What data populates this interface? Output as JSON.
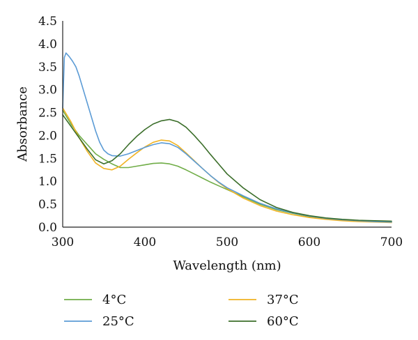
{
  "chart_data": {
    "type": "line",
    "title": "",
    "xlabel": "Wavelength (nm)",
    "ylabel": "Absorbance",
    "xlim": [
      300,
      700
    ],
    "ylim": [
      0,
      4.5
    ],
    "x_ticks": [
      "300",
      "400",
      "500",
      "600",
      "700"
    ],
    "y_ticks": [
      "0.0",
      "0.5",
      "1.0",
      "1.5",
      "2.0",
      "2.5",
      "3.0",
      "3.5",
      "4.0",
      "4.5"
    ],
    "grid": false,
    "legend_position": "bottom",
    "series": [
      {
        "name": "4°C",
        "color": "#70ad47",
        "points": [
          [
            300,
            2.55
          ],
          [
            310,
            2.25
          ],
          [
            320,
            2.0
          ],
          [
            330,
            1.8
          ],
          [
            340,
            1.6
          ],
          [
            350,
            1.48
          ],
          [
            360,
            1.38
          ],
          [
            370,
            1.3
          ],
          [
            380,
            1.3
          ],
          [
            390,
            1.33
          ],
          [
            400,
            1.36
          ],
          [
            410,
            1.39
          ],
          [
            420,
            1.4
          ],
          [
            430,
            1.38
          ],
          [
            440,
            1.33
          ],
          [
            450,
            1.25
          ],
          [
            460,
            1.16
          ],
          [
            470,
            1.07
          ],
          [
            480,
            0.98
          ],
          [
            490,
            0.9
          ],
          [
            500,
            0.82
          ],
          [
            520,
            0.66
          ],
          [
            540,
            0.5
          ],
          [
            560,
            0.38
          ],
          [
            580,
            0.3
          ],
          [
            600,
            0.23
          ],
          [
            620,
            0.19
          ],
          [
            640,
            0.16
          ],
          [
            660,
            0.14
          ],
          [
            680,
            0.12
          ],
          [
            700,
            0.11
          ]
        ]
      },
      {
        "name": "25°C",
        "color": "#5b9bd5",
        "points": [
          [
            300,
            2.6
          ],
          [
            302,
            3.7
          ],
          [
            304,
            3.8
          ],
          [
            308,
            3.72
          ],
          [
            312,
            3.62
          ],
          [
            316,
            3.5
          ],
          [
            320,
            3.3
          ],
          [
            325,
            3.0
          ],
          [
            330,
            2.7
          ],
          [
            335,
            2.4
          ],
          [
            340,
            2.1
          ],
          [
            345,
            1.85
          ],
          [
            350,
            1.68
          ],
          [
            355,
            1.6
          ],
          [
            360,
            1.56
          ],
          [
            370,
            1.55
          ],
          [
            380,
            1.6
          ],
          [
            390,
            1.67
          ],
          [
            400,
            1.74
          ],
          [
            410,
            1.8
          ],
          [
            420,
            1.84
          ],
          [
            430,
            1.82
          ],
          [
            440,
            1.74
          ],
          [
            450,
            1.6
          ],
          [
            460,
            1.44
          ],
          [
            470,
            1.28
          ],
          [
            480,
            1.12
          ],
          [
            490,
            0.98
          ],
          [
            500,
            0.86
          ],
          [
            520,
            0.68
          ],
          [
            540,
            0.52
          ],
          [
            560,
            0.4
          ],
          [
            580,
            0.31
          ],
          [
            600,
            0.24
          ],
          [
            620,
            0.19
          ],
          [
            640,
            0.16
          ],
          [
            660,
            0.14
          ],
          [
            680,
            0.12
          ],
          [
            700,
            0.11
          ]
        ]
      },
      {
        "name": "37°C",
        "color": "#f0b323",
        "points": [
          [
            300,
            2.6
          ],
          [
            310,
            2.3
          ],
          [
            320,
            1.95
          ],
          [
            330,
            1.65
          ],
          [
            340,
            1.4
          ],
          [
            350,
            1.28
          ],
          [
            360,
            1.25
          ],
          [
            370,
            1.33
          ],
          [
            380,
            1.48
          ],
          [
            390,
            1.62
          ],
          [
            400,
            1.75
          ],
          [
            410,
            1.85
          ],
          [
            420,
            1.9
          ],
          [
            430,
            1.88
          ],
          [
            440,
            1.78
          ],
          [
            450,
            1.62
          ],
          [
            460,
            1.45
          ],
          [
            470,
            1.28
          ],
          [
            480,
            1.12
          ],
          [
            490,
            0.97
          ],
          [
            500,
            0.84
          ],
          [
            520,
            0.63
          ],
          [
            540,
            0.47
          ],
          [
            560,
            0.35
          ],
          [
            580,
            0.27
          ],
          [
            600,
            0.21
          ],
          [
            620,
            0.17
          ],
          [
            640,
            0.14
          ],
          [
            660,
            0.12
          ],
          [
            680,
            0.11
          ],
          [
            700,
            0.1
          ]
        ]
      },
      {
        "name": "60°C",
        "color": "#3b6e2a",
        "points": [
          [
            300,
            2.45
          ],
          [
            310,
            2.2
          ],
          [
            320,
            1.95
          ],
          [
            330,
            1.7
          ],
          [
            340,
            1.47
          ],
          [
            350,
            1.38
          ],
          [
            360,
            1.45
          ],
          [
            370,
            1.6
          ],
          [
            380,
            1.8
          ],
          [
            390,
            1.98
          ],
          [
            400,
            2.13
          ],
          [
            410,
            2.25
          ],
          [
            420,
            2.32
          ],
          [
            430,
            2.35
          ],
          [
            440,
            2.3
          ],
          [
            450,
            2.18
          ],
          [
            460,
            2.0
          ],
          [
            470,
            1.8
          ],
          [
            480,
            1.58
          ],
          [
            490,
            1.37
          ],
          [
            500,
            1.16
          ],
          [
            520,
            0.85
          ],
          [
            540,
            0.6
          ],
          [
            560,
            0.43
          ],
          [
            580,
            0.32
          ],
          [
            600,
            0.25
          ],
          [
            620,
            0.2
          ],
          [
            640,
            0.17
          ],
          [
            660,
            0.15
          ],
          [
            680,
            0.14
          ],
          [
            700,
            0.13
          ]
        ]
      }
    ]
  }
}
